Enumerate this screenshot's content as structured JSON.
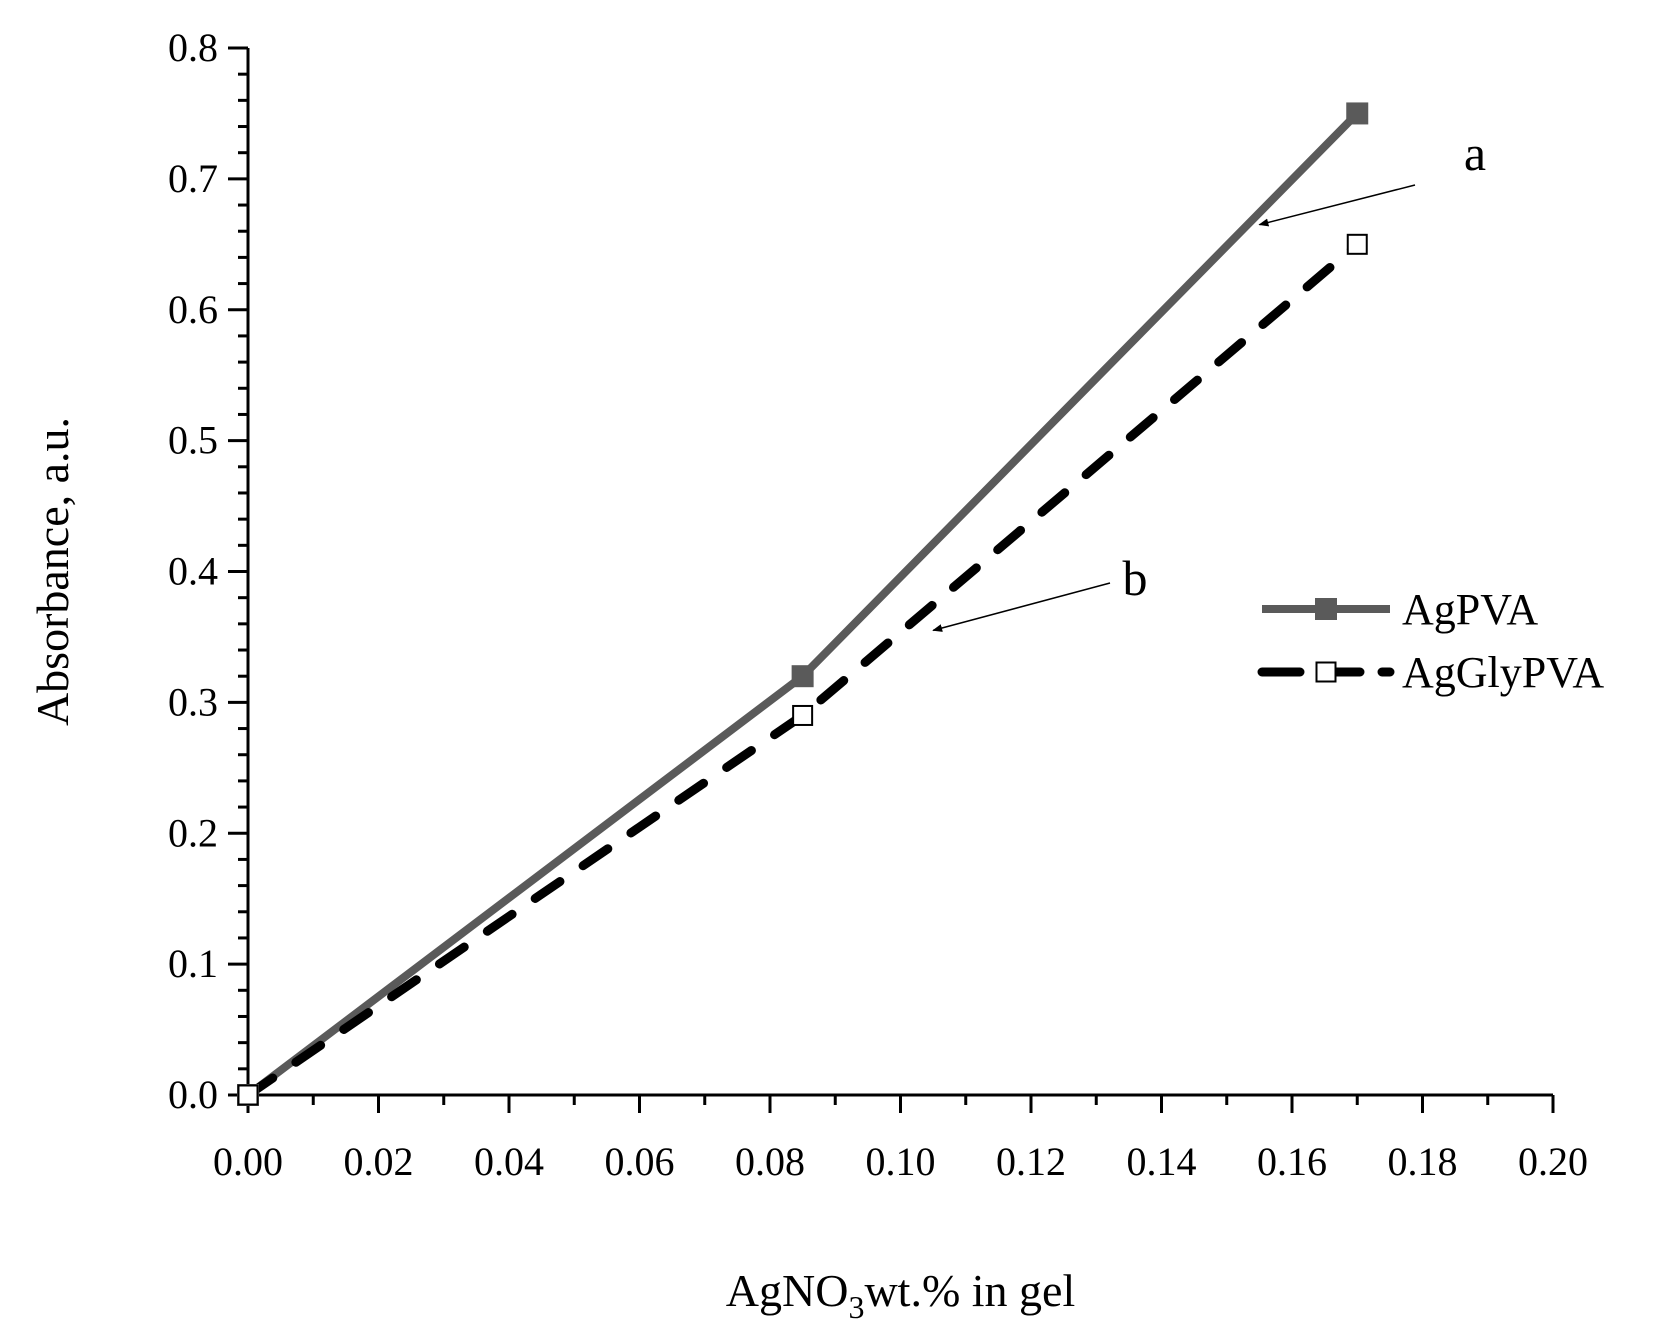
{
  "chart_data": {
    "type": "line",
    "title": "",
    "xlabel": {
      "main": "AgNO",
      "sub": "3",
      "rest": "wt.% in gel"
    },
    "ylabel": "Absorbance, a.u.",
    "xlim": [
      0,
      0.2
    ],
    "ylim": [
      0,
      0.8
    ],
    "x_ticks": [
      "0.00",
      "0.02",
      "0.04",
      "0.06",
      "0.08",
      "0.10",
      "0.12",
      "0.14",
      "0.16",
      "0.18",
      "0.20"
    ],
    "y_ticks": [
      "0.0",
      "0.1",
      "0.2",
      "0.3",
      "0.4",
      "0.5",
      "0.6",
      "0.7",
      "0.8"
    ],
    "grid": false,
    "legend_position": "right",
    "series": [
      {
        "name": "AgPVA",
        "x": [
          0,
          0.085,
          0.17
        ],
        "y": [
          0,
          0.32,
          0.75
        ],
        "color": "#5a5a5a",
        "line": "solid",
        "marker": "filled-square"
      },
      {
        "name": "AgGlyPVA",
        "x": [
          0,
          0.085,
          0.17
        ],
        "y": [
          0,
          0.29,
          0.65
        ],
        "color": "#000000",
        "line": "dashed",
        "marker": "open-square"
      }
    ],
    "annotations": [
      {
        "label": "a",
        "target": [
          0.155,
          0.665
        ]
      },
      {
        "label": "b",
        "target": [
          0.105,
          0.355
        ]
      }
    ]
  }
}
